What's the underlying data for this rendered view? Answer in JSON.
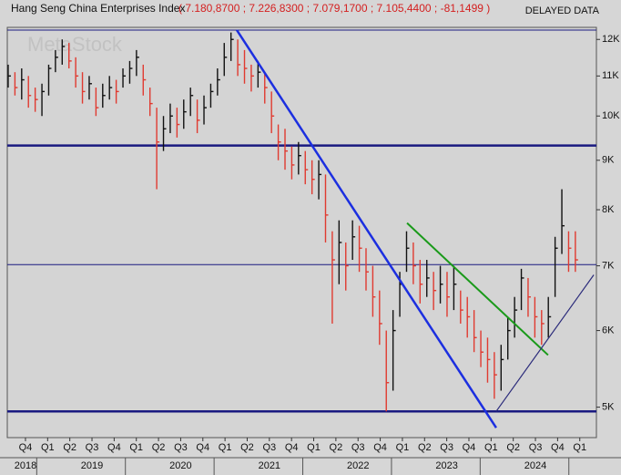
{
  "header": {
    "title": "Hang Seng China Enterprises Index",
    "quote": "( 7.180,8700 ; 7.226,8300 ; 7.079,1700 ; 7.105,4400 ; -81,1499 )",
    "status": "DELAYED DATA",
    "watermark": "MetaStock"
  },
  "chart_data": {
    "type": "ohlc",
    "high": [
      11300,
      11100,
      11200,
      11000,
      10700,
      10800,
      11300,
      11700,
      12000,
      11900,
      11500,
      11100,
      11000,
      10700,
      10800,
      11000,
      10900,
      11200,
      11400,
      11700,
      11300,
      10700,
      10200,
      10000,
      10300,
      10200,
      10400,
      10700,
      10400,
      10500,
      10800,
      11200,
      11900,
      12200,
      12000,
      11700,
      11300,
      11400,
      11100,
      10600,
      9800,
      9700,
      9300,
      9400,
      9200,
      9000,
      9000,
      8700,
      7600,
      7800,
      7400,
      7800,
      7700,
      7300,
      7000,
      6600,
      6000,
      6300,
      6900,
      7600,
      7400,
      7100,
      7100,
      6900,
      7000,
      6900,
      7000,
      6600,
      6500,
      6300,
      6000,
      5900,
      5700,
      5800,
      6200,
      6500,
      6950,
      6800,
      6500,
      6300,
      6500,
      7500,
      8400,
      7600,
      7600
    ],
    "low": [
      10700,
      10500,
      10400,
      10200,
      10100,
      10000,
      10500,
      11100,
      11300,
      11200,
      10700,
      10300,
      10400,
      10000,
      10200,
      10400,
      10300,
      10700,
      10800,
      11000,
      10500,
      10000,
      8400,
      9200,
      9600,
      9500,
      9700,
      10000,
      9600,
      9800,
      10200,
      10500,
      11000,
      11400,
      11000,
      10800,
      10600,
      10700,
      10300,
      9600,
      9000,
      8800,
      8600,
      8700,
      8500,
      8300,
      8200,
      7400,
      6100,
      6700,
      6600,
      7100,
      6900,
      6600,
      6200,
      5800,
      4950,
      5200,
      6200,
      6900,
      6700,
      6400,
      6500,
      6300,
      6400,
      6200,
      6300,
      6100,
      5900,
      5700,
      5500,
      5300,
      5100,
      5200,
      5600,
      5900,
      6300,
      6200,
      5900,
      5800,
      5900,
      6500,
      7200,
      6900,
      6900
    ],
    "close": [
      11000,
      10700,
      10900,
      10500,
      10400,
      10600,
      11200,
      11500,
      11800,
      11400,
      11000,
      10600,
      10800,
      10200,
      10500,
      10700,
      10600,
      11000,
      11200,
      11500,
      10900,
      10300,
      9400,
      9700,
      10000,
      9800,
      10100,
      10500,
      9900,
      10200,
      10600,
      10900,
      11500,
      12000,
      11300,
      11200,
      11000,
      11100,
      10700,
      10000,
      9400,
      9200,
      8900,
      9100,
      8800,
      8600,
      8700,
      7900,
      7100,
      7400,
      7000,
      7500,
      7300,
      6900,
      6500,
      6100,
      5300,
      6000,
      6700,
      7300,
      7000,
      6700,
      6800,
      6600,
      6700,
      6500,
      6700,
      6300,
      6200,
      5900,
      5700,
      5600,
      5400,
      5600,
      6000,
      6300,
      6800,
      6500,
      6200,
      6100,
      6200,
      7300,
      7700,
      7300,
      7100
    ],
    "up_color": "#111111",
    "down_color": "#e03a30",
    "log_scale": true,
    "ylim": [
      4650,
      12350
    ],
    "yticks": [
      {
        "value": 5000,
        "label": "5K"
      },
      {
        "value": 6000,
        "label": "6K"
      },
      {
        "value": 7000,
        "label": "7K"
      },
      {
        "value": 8000,
        "label": "8K"
      },
      {
        "value": 9000,
        "label": "9K"
      },
      {
        "value": 10000,
        "label": "10K"
      },
      {
        "value": 11000,
        "label": "11K"
      },
      {
        "value": 12000,
        "label": "12K"
      }
    ],
    "xlim": [
      -0.82,
      25.75
    ],
    "xticks": [
      {
        "value": 0,
        "label": "Q4"
      },
      {
        "value": 1,
        "label": "Q1"
      },
      {
        "value": 2,
        "label": "Q2"
      },
      {
        "value": 3,
        "label": "Q3"
      },
      {
        "value": 4,
        "label": "Q4"
      },
      {
        "value": 5,
        "label": "Q1"
      },
      {
        "value": 6,
        "label": "Q2"
      },
      {
        "value": 7,
        "label": "Q3"
      },
      {
        "value": 8,
        "label": "Q4"
      },
      {
        "value": 9,
        "label": "Q1"
      },
      {
        "value": 10,
        "label": "Q2"
      },
      {
        "value": 11,
        "label": "Q3"
      },
      {
        "value": 12,
        "label": "Q4"
      },
      {
        "value": 13,
        "label": "Q1"
      },
      {
        "value": 14,
        "label": "Q2"
      },
      {
        "value": 15,
        "label": "Q3"
      },
      {
        "value": 16,
        "label": "Q4"
      },
      {
        "value": 17,
        "label": "Q1"
      },
      {
        "value": 18,
        "label": "Q2"
      },
      {
        "value": 19,
        "label": "Q3"
      },
      {
        "value": 20,
        "label": "Q4"
      },
      {
        "value": 21,
        "label": "Q1"
      },
      {
        "value": 22,
        "label": "Q2"
      },
      {
        "value": 23,
        "label": "Q3"
      },
      {
        "value": 24,
        "label": "Q4"
      },
      {
        "value": 25,
        "label": "Q1"
      }
    ],
    "years": [
      "2018",
      "2019",
      "2020",
      "2021",
      "2022",
      "2023",
      "2024"
    ],
    "levels": [
      {
        "value": 12270,
        "color": "#1a1a80",
        "width": 1
      },
      {
        "value": 9320,
        "color": "#1a1a80",
        "width": 2.5
      },
      {
        "value": 7020,
        "color": "#1a1a80",
        "width": 1
      },
      {
        "value": 4950,
        "color": "#1a1a80",
        "width": 2.5
      }
    ],
    "trendlines": [
      {
        "x": [
          9.53,
          21.23
        ],
        "y": [
          12270,
          4760
        ],
        "color": "#1c2fe0",
        "width": 2.5
      },
      {
        "x": [
          17.21,
          23.57
        ],
        "y": [
          7750,
          5660
        ],
        "color": "#1a9a1a",
        "width": 2
      },
      {
        "x": [
          21.23,
          25.63
        ],
        "y": [
          4950,
          6850
        ],
        "color": "#2a2a7a",
        "width": 1.2
      }
    ]
  }
}
